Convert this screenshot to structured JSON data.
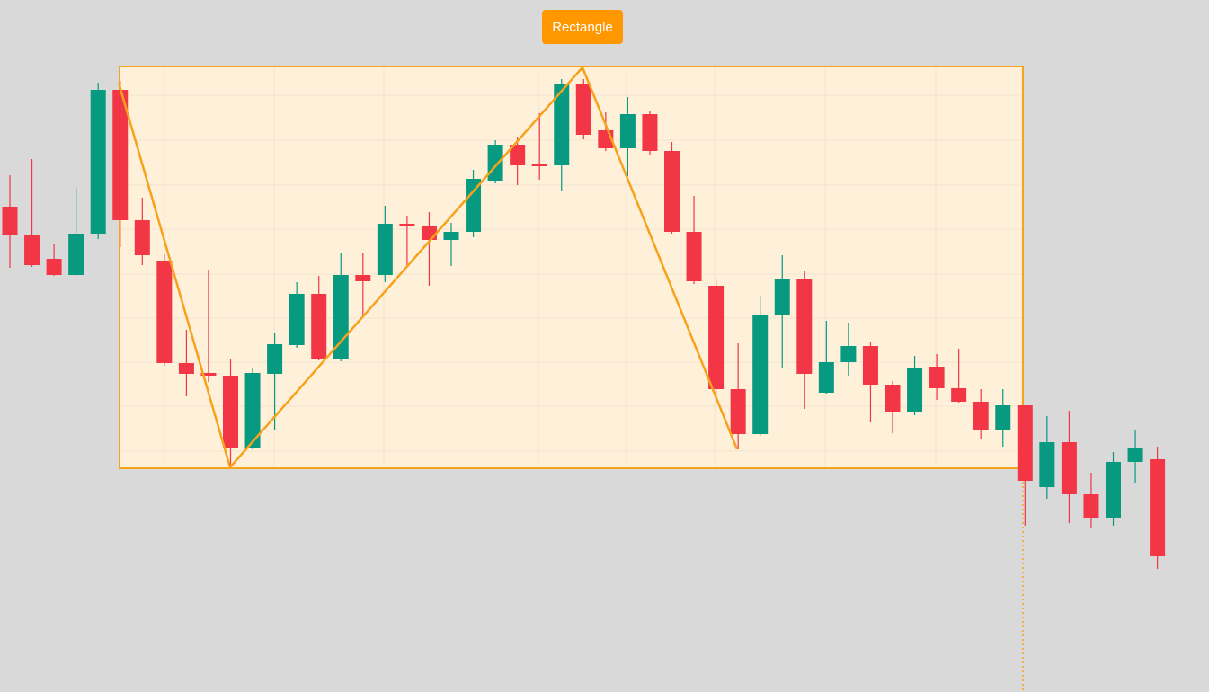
{
  "chart_data": {
    "type": "candlestick",
    "annotation": "Rectangle",
    "up_color": "#089981",
    "down_color": "#f23645",
    "ylim": [
      0,
      770
    ],
    "open": [
      540,
      509,
      482,
      464,
      510,
      670,
      525,
      480,
      366,
      355,
      352,
      272,
      354,
      386,
      443,
      370,
      464,
      464,
      521,
      519,
      503,
      512,
      569,
      609,
      587,
      586,
      677,
      625,
      605,
      643,
      602,
      512,
      452,
      337,
      287,
      419,
      459,
      333,
      367,
      385,
      342,
      312,
      362,
      338,
      323,
      292,
      319,
      228,
      278,
      220,
      194,
      256,
      259
    ],
    "high": [
      575,
      593,
      498,
      561,
      678,
      680,
      550,
      487,
      403,
      470,
      370,
      360,
      399,
      456,
      463,
      488,
      489,
      541,
      530,
      534,
      522,
      581,
      614,
      618,
      644,
      682,
      682,
      645,
      662,
      646,
      612,
      552,
      460,
      388,
      441,
      486,
      468,
      413,
      411,
      390,
      346,
      374,
      376,
      382,
      337,
      337,
      319,
      307,
      313,
      244,
      267,
      292,
      273
    ],
    "low": [
      472,
      473,
      463,
      463,
      504,
      495,
      475,
      363,
      329,
      345,
      250,
      270,
      292,
      383,
      369,
      368,
      418,
      456,
      473,
      452,
      474,
      506,
      566,
      564,
      570,
      557,
      615,
      602,
      574,
      598,
      510,
      454,
      330,
      270,
      285,
      360,
      315,
      332,
      352,
      300,
      288,
      308,
      325,
      322,
      282,
      273,
      185,
      215,
      188,
      183,
      185,
      233,
      137
    ],
    "close": [
      509,
      475,
      464,
      510,
      670,
      525,
      486,
      366,
      354,
      352,
      272,
      355,
      387,
      443,
      370,
      464,
      457,
      521,
      519,
      503,
      512,
      571,
      609,
      586,
      585,
      677,
      620,
      605,
      643,
      602,
      512,
      457,
      337,
      287,
      419,
      459,
      354,
      367,
      385,
      342,
      312,
      360,
      338,
      323,
      292,
      319,
      235,
      278,
      220,
      194,
      256,
      271,
      151
    ]
  }
}
